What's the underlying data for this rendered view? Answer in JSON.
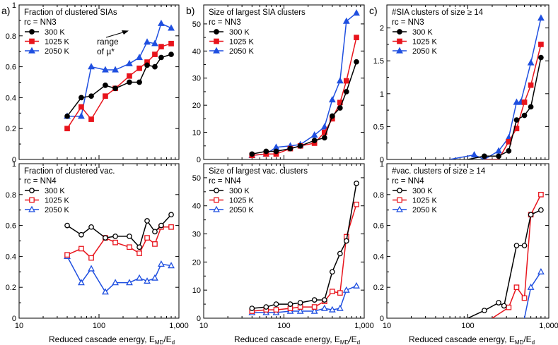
{
  "figure": {
    "xlabel_main": "Reduced cascade energy, E",
    "xlabel_sub1": "MD",
    "xlabel_mid": "/E",
    "xlabel_sub2": "d",
    "annotation_range_l1": "range",
    "annotation_range_l2": "of µ*"
  },
  "colors": {
    "s300": "#000000",
    "s1025": "#e8141c",
    "s2050": "#1f4fe0"
  },
  "chart_data": [
    {
      "panel_label": "a)",
      "type": "line",
      "title": "Fraction of clustered SIAs",
      "rc": "rc = NN3",
      "marker_fill": "filled",
      "xscale": "log",
      "xlim": [
        10,
        1000
      ],
      "xticks": [
        {
          "v": 10,
          "l": "10"
        },
        {
          "v": 100,
          "l": "100"
        },
        {
          "v": 1000,
          "l": "1,000"
        }
      ],
      "ylim": [
        0,
        1
      ],
      "yticks": [
        {
          "v": 0,
          "l": "0"
        },
        {
          "v": 0.2,
          "l": "0.2"
        },
        {
          "v": 0.4,
          "l": "0.4"
        },
        {
          "v": 0.6,
          "l": "0.6"
        },
        {
          "v": 0.8,
          "l": "0.8"
        },
        {
          "v": 1,
          "l": "1"
        }
      ],
      "show_xticklabels": false,
      "series": [
        {
          "name": "300 K",
          "key": "s300",
          "marker": "circle",
          "x": [
            40,
            60,
            80,
            120,
            160,
            240,
            320,
            400,
            500,
            600,
            800
          ],
          "y": [
            0.28,
            0.4,
            0.41,
            0.48,
            0.46,
            0.5,
            0.5,
            0.61,
            0.6,
            0.66,
            0.68
          ]
        },
        {
          "name": "1025 K",
          "key": "s1025",
          "marker": "square",
          "x": [
            40,
            60,
            80,
            120,
            160,
            240,
            320,
            400,
            500,
            600,
            800
          ],
          "y": [
            0.2,
            0.34,
            0.26,
            0.41,
            0.46,
            0.54,
            0.59,
            0.63,
            0.68,
            0.73,
            0.75
          ]
        },
        {
          "name": "2050 K",
          "key": "s2050",
          "marker": "triangle",
          "x": [
            40,
            60,
            80,
            120,
            160,
            240,
            320,
            400,
            500,
            600,
            800
          ],
          "y": [
            0.28,
            0.28,
            0.6,
            0.58,
            0.58,
            0.62,
            0.66,
            0.76,
            0.75,
            0.88,
            0.85
          ]
        }
      ]
    },
    {
      "panel_label": "b)",
      "type": "line",
      "title": "Size of largest SIA clusters",
      "rc": "rc = NN3",
      "marker_fill": "filled",
      "xscale": "log",
      "xlim": [
        10,
        1000
      ],
      "xticks": [
        {
          "v": 10,
          "l": "10"
        },
        {
          "v": 100,
          "l": "100"
        },
        {
          "v": 1000,
          "l": "1,000"
        }
      ],
      "ylim": [
        0,
        57
      ],
      "yticks": [
        {
          "v": 0,
          "l": "0"
        },
        {
          "v": 10,
          "l": "10"
        },
        {
          "v": 20,
          "l": "20"
        },
        {
          "v": 30,
          "l": "30"
        },
        {
          "v": 40,
          "l": "40"
        },
        {
          "v": 50,
          "l": "50"
        }
      ],
      "show_xticklabels": false,
      "series": [
        {
          "name": "300 K",
          "key": "s300",
          "marker": "circle",
          "x": [
            40,
            60,
            80,
            120,
            160,
            240,
            320,
            400,
            500,
            600,
            800
          ],
          "y": [
            2,
            3,
            3,
            4,
            5,
            7,
            8,
            16,
            19,
            25,
            36
          ]
        },
        {
          "name": "1025 K",
          "key": "s1025",
          "marker": "square",
          "x": [
            40,
            60,
            80,
            120,
            160,
            240,
            320,
            400,
            500,
            600,
            800
          ],
          "y": [
            1.5,
            2,
            2,
            4,
            5,
            6,
            10,
            15,
            21,
            29,
            45
          ]
        },
        {
          "name": "2050 K",
          "key": "s2050",
          "marker": "triangle",
          "x": [
            40,
            60,
            80,
            120,
            160,
            240,
            320,
            400,
            500,
            600,
            800
          ],
          "y": [
            1.5,
            2,
            4.5,
            5,
            5.5,
            9,
            12,
            22,
            29,
            51,
            54
          ]
        }
      ]
    },
    {
      "panel_label": "c)",
      "type": "line",
      "title": "#SIA clusters of size ≥ 14",
      "rc": "rc = NN3",
      "marker_fill": "filled",
      "xscale": "log",
      "xlim": [
        10,
        1000
      ],
      "xticks": [
        {
          "v": 10,
          "l": "10"
        },
        {
          "v": 100,
          "l": "100"
        },
        {
          "v": 1000,
          "l": "1,000"
        }
      ],
      "ylim": [
        0,
        2.35
      ],
      "yticks": [
        {
          "v": 0,
          "l": "0"
        },
        {
          "v": 0.5,
          "l": "0.5"
        },
        {
          "v": 1,
          "l": "1"
        },
        {
          "v": 1.5,
          "l": "1.5"
        },
        {
          "v": 2,
          "l": "2"
        }
      ],
      "show_xticklabels": false,
      "series": [
        {
          "name": "300 K",
          "key": "s300",
          "marker": "circle",
          "x": [
            100,
            160,
            240,
            320,
            400,
            500,
            600,
            800
          ],
          "y": [
            0,
            0.05,
            0.05,
            0.13,
            0.6,
            0.67,
            0.8,
            1.55
          ]
        },
        {
          "name": "1025 K",
          "key": "s1025",
          "marker": "square",
          "x": [
            160,
            240,
            320,
            400,
            500,
            600,
            800
          ],
          "y": [
            0,
            0,
            0.27,
            0.47,
            0.87,
            1.13,
            1.75
          ]
        },
        {
          "name": "2050 K",
          "key": "s2050",
          "marker": "triangle",
          "x": [
            60,
            120,
            160,
            240,
            320,
            400,
            450,
            600,
            800
          ],
          "y": [
            0,
            0.07,
            0.0,
            0.13,
            0.33,
            0.87,
            0.87,
            1.47,
            2.15
          ]
        }
      ]
    },
    {
      "panel_label": "",
      "type": "line",
      "title": "Fraction of clustered vac.",
      "rc": "rc = NN4",
      "marker_fill": "open",
      "xscale": "log",
      "xlim": [
        10,
        1000
      ],
      "xticks": [
        {
          "v": 10,
          "l": "10"
        },
        {
          "v": 100,
          "l": "100"
        },
        {
          "v": 1000,
          "l": "1,000"
        }
      ],
      "ylim": [
        0,
        1
      ],
      "yticks": [
        {
          "v": 0,
          "l": "0"
        },
        {
          "v": 0.2,
          "l": "0.2"
        },
        {
          "v": 0.4,
          "l": "0.4"
        },
        {
          "v": 0.6,
          "l": "0.6"
        },
        {
          "v": 0.8,
          "l": "0.8"
        },
        {
          "v": 1,
          "l": "1"
        }
      ],
      "show_xticklabels": true,
      "series": [
        {
          "name": "300 K",
          "key": "s300",
          "marker": "circle",
          "x": [
            40,
            60,
            80,
            120,
            160,
            240,
            320,
            400,
            500,
            600,
            800
          ],
          "y": [
            0.6,
            0.54,
            0.59,
            0.52,
            0.53,
            0.53,
            0.46,
            0.63,
            0.56,
            0.6,
            0.67
          ]
        },
        {
          "name": "1025 K",
          "key": "s1025",
          "marker": "square",
          "x": [
            40,
            60,
            80,
            120,
            160,
            240,
            320,
            400,
            500,
            600,
            800
          ],
          "y": [
            0.41,
            0.45,
            0.39,
            0.52,
            0.49,
            0.46,
            0.42,
            0.52,
            0.48,
            0.59,
            0.59
          ]
        },
        {
          "name": "2050 K",
          "key": "s2050",
          "marker": "triangle",
          "x": [
            40,
            60,
            80,
            120,
            160,
            240,
            320,
            400,
            500,
            600,
            800
          ],
          "y": [
            0.4,
            0.23,
            0.32,
            0.17,
            0.23,
            0.23,
            0.26,
            0.24,
            0.26,
            0.35,
            0.34
          ]
        }
      ]
    },
    {
      "panel_label": "",
      "type": "line",
      "title": "Size of largest vac. clusters",
      "rc": "rc = NN4",
      "marker_fill": "open",
      "xscale": "log",
      "xlim": [
        10,
        1000
      ],
      "xticks": [
        {
          "v": 10,
          "l": "10"
        },
        {
          "v": 100,
          "l": "100"
        },
        {
          "v": 1000,
          "l": "1,000"
        }
      ],
      "ylim": [
        0,
        55
      ],
      "yticks": [
        {
          "v": 0,
          "l": "0"
        },
        {
          "v": 10,
          "l": "10"
        },
        {
          "v": 20,
          "l": "20"
        },
        {
          "v": 30,
          "l": "30"
        },
        {
          "v": 40,
          "l": "40"
        },
        {
          "v": 50,
          "l": "50"
        }
      ],
      "show_xticklabels": true,
      "series": [
        {
          "name": "300 K",
          "key": "s300",
          "marker": "circle",
          "x": [
            40,
            60,
            80,
            120,
            160,
            240,
            320,
            400,
            500,
            600,
            800
          ],
          "y": [
            3.5,
            4,
            5,
            5,
            5.5,
            6.5,
            6.5,
            16.5,
            23,
            27.5,
            48
          ]
        },
        {
          "name": "1025 K",
          "key": "s1025",
          "marker": "square",
          "x": [
            40,
            60,
            80,
            120,
            160,
            240,
            320,
            400,
            500,
            600,
            800
          ],
          "y": [
            2.5,
            3,
            3,
            3.5,
            4,
            4,
            6,
            9.5,
            9,
            29,
            40.5
          ]
        },
        {
          "name": "2050 K",
          "key": "s2050",
          "marker": "triangle",
          "x": [
            40,
            60,
            80,
            120,
            160,
            240,
            320,
            400,
            500,
            600,
            800
          ],
          "y": [
            2,
            2,
            2,
            2.5,
            2.5,
            2.5,
            3.5,
            3,
            3.5,
            10,
            11.5
          ]
        }
      ]
    },
    {
      "panel_label": "",
      "type": "line",
      "title": "#vac. clusters of size ≥ 14",
      "rc": "rc = NN4",
      "marker_fill": "open",
      "xscale": "log",
      "xlim": [
        10,
        1000
      ],
      "xticks": [
        {
          "v": 10,
          "l": "10"
        },
        {
          "v": 100,
          "l": "100"
        },
        {
          "v": 1000,
          "l": "1,000"
        }
      ],
      "ylim": [
        0,
        1
      ],
      "yticks": [
        {
          "v": 0,
          "l": "0"
        },
        {
          "v": 0.2,
          "l": "0.2"
        },
        {
          "v": 0.4,
          "l": "0.4"
        },
        {
          "v": 0.6,
          "l": "0.6"
        },
        {
          "v": 0.8,
          "l": "0.8"
        },
        {
          "v": 1,
          "l": "1"
        }
      ],
      "show_xticklabels": true,
      "series": [
        {
          "name": "300 K",
          "key": "s300",
          "marker": "circle",
          "x": [
            100,
            160,
            240,
            280,
            400,
            500,
            600,
            800
          ],
          "y": [
            0,
            0.05,
            0.1,
            0.08,
            0.47,
            0.47,
            0.67,
            0.7
          ]
        },
        {
          "name": "1025 K",
          "key": "s1025",
          "marker": "square",
          "x": [
            200,
            320,
            400,
            500,
            600,
            800
          ],
          "y": [
            0,
            0.07,
            0.2,
            0.13,
            0.67,
            0.8
          ]
        },
        {
          "name": "2050 K",
          "key": "s2050",
          "marker": "triangle",
          "x": [
            500,
            600,
            800
          ],
          "y": [
            0,
            0.2,
            0.3
          ]
        }
      ]
    }
  ]
}
